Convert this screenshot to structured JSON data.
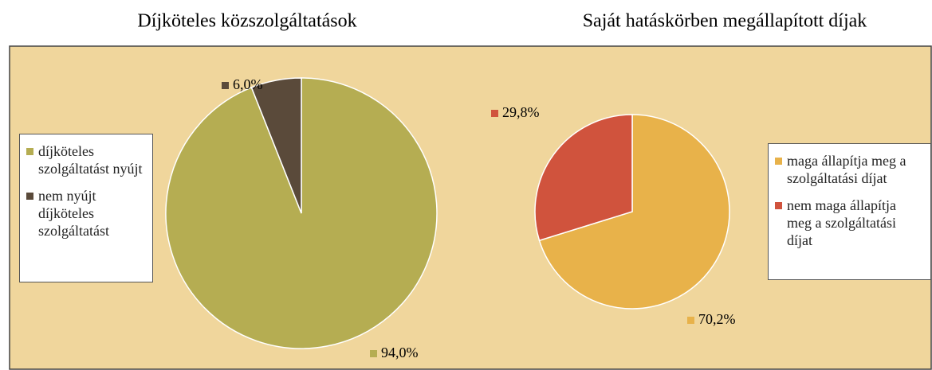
{
  "chart_data": [
    {
      "type": "pie",
      "title": "Díjköteles közszolgáltatások",
      "categories": [
        "díjköteles szolgáltatást nyújt",
        "nem nyújt díjköteles szolgáltatást"
      ],
      "values": [
        94.0,
        6.0
      ],
      "value_labels": [
        "94,0%",
        "6,0%"
      ],
      "colors": [
        "#b5ad52",
        "#5a4a3a"
      ]
    },
    {
      "type": "pie",
      "title": "Saját hatáskörben megállapított díjak",
      "categories": [
        "maga állapítja meg a szolgáltatási díjat",
        "nem maga állapítja meg a szolgáltatási díjat"
      ],
      "values": [
        70.2,
        29.8
      ],
      "value_labels": [
        "70,2%",
        "29,8%"
      ],
      "colors": [
        "#e8b24a",
        "#d0533d"
      ]
    }
  ]
}
